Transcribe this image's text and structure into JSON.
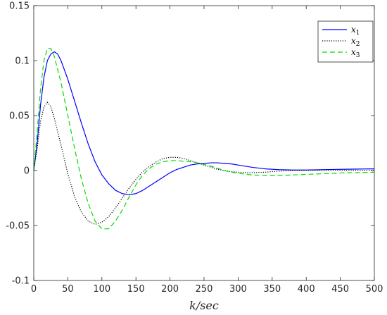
{
  "chart_data": {
    "type": "line",
    "xlabel": "k/sec",
    "ylabel": "",
    "title": "",
    "xlim": [
      0,
      500
    ],
    "ylim": [
      -0.1,
      0.15
    ],
    "x_ticks": [
      0,
      50,
      100,
      150,
      200,
      250,
      300,
      350,
      400,
      450,
      500
    ],
    "y_ticks": [
      -0.1,
      -0.05,
      0,
      0.05,
      0.1,
      0.15
    ],
    "y_tick_labels": [
      "-0.1",
      "-0.05",
      "0",
      "0.05",
      "0.1",
      "0.15"
    ],
    "grid": false,
    "legend_position": "top-right",
    "series": [
      {
        "name": "x1",
        "name_main": "x",
        "name_sub": "1",
        "color": "#0000ff",
        "line_style": "solid",
        "points": [
          [
            0,
            0
          ],
          [
            5,
            0.025
          ],
          [
            10,
            0.06
          ],
          [
            15,
            0.085
          ],
          [
            20,
            0.1
          ],
          [
            25,
            0.106
          ],
          [
            30,
            0.108
          ],
          [
            35,
            0.106
          ],
          [
            40,
            0.1
          ],
          [
            50,
            0.083
          ],
          [
            60,
            0.063
          ],
          [
            70,
            0.043
          ],
          [
            80,
            0.024
          ],
          [
            90,
            0.008
          ],
          [
            100,
            -0.004
          ],
          [
            110,
            -0.012
          ],
          [
            120,
            -0.018
          ],
          [
            130,
            -0.021
          ],
          [
            140,
            -0.022
          ],
          [
            150,
            -0.021
          ],
          [
            160,
            -0.018
          ],
          [
            170,
            -0.014
          ],
          [
            180,
            -0.01
          ],
          [
            190,
            -0.006
          ],
          [
            200,
            -0.002
          ],
          [
            210,
            0.001
          ],
          [
            220,
            0.003
          ],
          [
            230,
            0.005
          ],
          [
            240,
            0.006
          ],
          [
            250,
            0.0065
          ],
          [
            260,
            0.007
          ],
          [
            270,
            0.007
          ],
          [
            280,
            0.0065
          ],
          [
            290,
            0.006
          ],
          [
            300,
            0.005
          ],
          [
            320,
            0.003
          ],
          [
            340,
            0.0015
          ],
          [
            360,
            0.0008
          ],
          [
            380,
            0.0005
          ],
          [
            400,
            0.0005
          ],
          [
            420,
            0.0007
          ],
          [
            440,
            0.001
          ],
          [
            460,
            0.0012
          ],
          [
            480,
            0.0014
          ],
          [
            500,
            0.0015
          ]
        ]
      },
      {
        "name": "x2",
        "name_main": "x",
        "name_sub": "2",
        "color": "#000000",
        "line_style": "dotted",
        "points": [
          [
            0,
            0
          ],
          [
            5,
            0.02
          ],
          [
            10,
            0.045
          ],
          [
            15,
            0.058
          ],
          [
            20,
            0.062
          ],
          [
            25,
            0.058
          ],
          [
            30,
            0.048
          ],
          [
            40,
            0.023
          ],
          [
            50,
            -0.003
          ],
          [
            60,
            -0.024
          ],
          [
            70,
            -0.038
          ],
          [
            80,
            -0.046
          ],
          [
            90,
            -0.049
          ],
          [
            100,
            -0.047
          ],
          [
            110,
            -0.042
          ],
          [
            120,
            -0.034
          ],
          [
            130,
            -0.025
          ],
          [
            140,
            -0.016
          ],
          [
            150,
            -0.008
          ],
          [
            160,
            -0.001
          ],
          [
            170,
            0.004
          ],
          [
            180,
            0.008
          ],
          [
            190,
            0.011
          ],
          [
            200,
            0.012
          ],
          [
            210,
            0.012
          ],
          [
            220,
            0.011
          ],
          [
            230,
            0.009
          ],
          [
            240,
            0.007
          ],
          [
            250,
            0.005
          ],
          [
            260,
            0.003
          ],
          [
            270,
            0.001
          ],
          [
            280,
            0
          ],
          [
            290,
            -0.001
          ],
          [
            300,
            -0.0015
          ],
          [
            320,
            -0.002
          ],
          [
            340,
            -0.0015
          ],
          [
            360,
            -0.0005
          ],
          [
            380,
            0
          ],
          [
            400,
            0.0002
          ],
          [
            450,
            0.0003
          ],
          [
            500,
            0.0003
          ]
        ]
      },
      {
        "name": "x3",
        "name_main": "x",
        "name_sub": "3",
        "color": "#00dd00",
        "line_style": "dashed",
        "points": [
          [
            0,
            0
          ],
          [
            5,
            0.035
          ],
          [
            10,
            0.075
          ],
          [
            15,
            0.1
          ],
          [
            20,
            0.111
          ],
          [
            25,
            0.111
          ],
          [
            30,
            0.104
          ],
          [
            40,
            0.08
          ],
          [
            50,
            0.05
          ],
          [
            60,
            0.02
          ],
          [
            70,
            -0.008
          ],
          [
            80,
            -0.03
          ],
          [
            90,
            -0.046
          ],
          [
            100,
            -0.053
          ],
          [
            110,
            -0.053
          ],
          [
            120,
            -0.046
          ],
          [
            130,
            -0.036
          ],
          [
            140,
            -0.024
          ],
          [
            150,
            -0.013
          ],
          [
            160,
            -0.004
          ],
          [
            170,
            0.002
          ],
          [
            180,
            0.006
          ],
          [
            190,
            0.008
          ],
          [
            200,
            0.009
          ],
          [
            210,
            0.009
          ],
          [
            220,
            0.0085
          ],
          [
            230,
            0.008
          ],
          [
            240,
            0.007
          ],
          [
            250,
            0.0055
          ],
          [
            260,
            0.004
          ],
          [
            270,
            0.002
          ],
          [
            280,
            0
          ],
          [
            290,
            -0.0015
          ],
          [
            300,
            -0.0025
          ],
          [
            320,
            -0.004
          ],
          [
            340,
            -0.0045
          ],
          [
            360,
            -0.0045
          ],
          [
            380,
            -0.004
          ],
          [
            400,
            -0.0035
          ],
          [
            420,
            -0.003
          ],
          [
            440,
            -0.0025
          ],
          [
            460,
            -0.002
          ],
          [
            480,
            -0.0018
          ],
          [
            500,
            -0.0015
          ]
        ]
      }
    ]
  }
}
